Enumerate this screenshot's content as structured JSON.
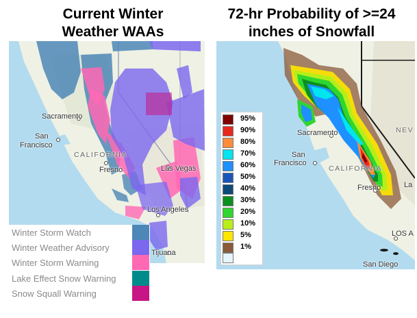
{
  "titles": {
    "left_line1": "Current Winter",
    "left_line2": "Weather WAAs",
    "right_line1": "72-hr Probability of >=24",
    "right_line2": "inches of Snowfall"
  },
  "left_map": {
    "labels": {
      "sacramento": "Sacramento",
      "san": "San",
      "francisco": "Francisco",
      "california": "CALIFORNIA",
      "fresno": "Fresno",
      "las_vegas": "Las Vegas",
      "los_angeles": "Los Angeles",
      "tijuana": "Tijuana"
    },
    "legend": [
      {
        "label": "Winter Storm Watch",
        "color": "#4d87b7"
      },
      {
        "label": "Winter Weather Advisory",
        "color": "#7b68ee"
      },
      {
        "label": "Winter Storm Warning",
        "color": "#ff69b4"
      },
      {
        "label": "Lake Effect Snow Warning",
        "color": "#008b8b"
      },
      {
        "label": "Snow Squall Warning",
        "color": "#c71585"
      }
    ]
  },
  "right_map": {
    "labels": {
      "sacramento": "Sacramento",
      "san": "San",
      "francisco": "Francisco",
      "california": "CALIFORNIA",
      "fresno": "Fresno",
      "nev": "NEV",
      "los": "LOS A",
      "san_diego": "San Diego",
      "la": "La"
    },
    "color_scale": [
      {
        "label": "95%",
        "color": "#7f0000"
      },
      {
        "label": "90%",
        "color": "#e8281c"
      },
      {
        "label": "80%",
        "color": "#ff8c3a"
      },
      {
        "label": "70%",
        "color": "#00e5ee"
      },
      {
        "label": "60%",
        "color": "#1e90ff"
      },
      {
        "label": "50%",
        "color": "#1a56b8"
      },
      {
        "label": "40%",
        "color": "#0b4a7a"
      },
      {
        "label": "30%",
        "color": "#0b8f1f"
      },
      {
        "label": "20%",
        "color": "#2fd62f"
      },
      {
        "label": "10%",
        "color": "#b7ee1a"
      },
      {
        "label": "5%",
        "color": "#ffe600"
      },
      {
        "label": "1%",
        "color": "#8b5a3a"
      },
      {
        "label": "",
        "color": "#e6f5fc"
      }
    ]
  }
}
